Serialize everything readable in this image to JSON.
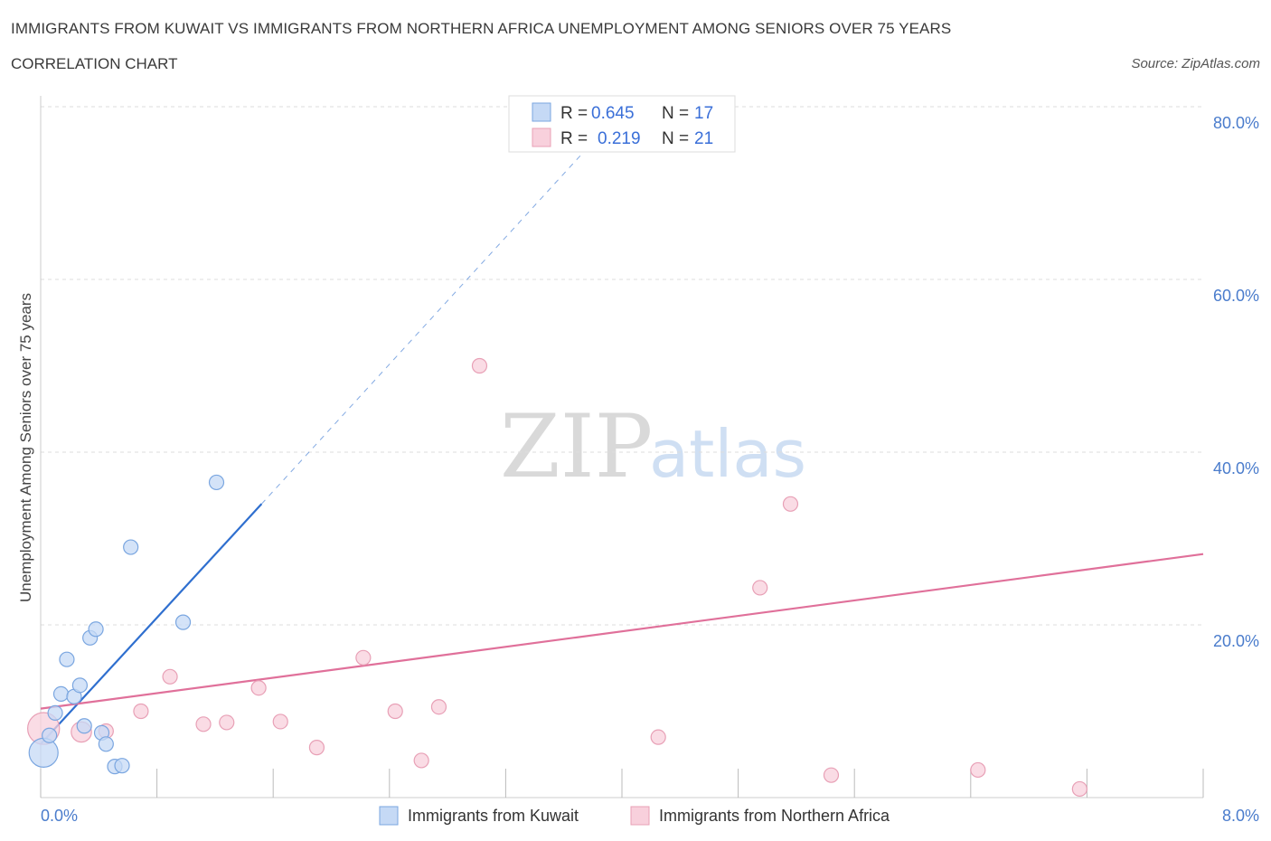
{
  "header": {
    "title": "IMMIGRANTS FROM KUWAIT VS IMMIGRANTS FROM NORTHERN AFRICA UNEMPLOYMENT AMONG SENIORS OVER 75 YEARS",
    "subtitle": "CORRELATION CHART",
    "source": "Source: ZipAtlas.com"
  },
  "watermark": {
    "zip": "ZIP",
    "atlas": "atlas"
  },
  "legend": {
    "r_label": "R =",
    "n_label": "N =",
    "kuwait": {
      "r": "0.645",
      "n": "17"
    },
    "nafrica": {
      "r": "0.219",
      "n": "21"
    }
  },
  "colors": {
    "kuwait_fill": "#c5d9f5",
    "kuwait_stroke": "#7aa6e0",
    "kuwait_line": "#2f6fcf",
    "nafrica_fill": "#f8d0dc",
    "nafrica_stroke": "#e8a0b6",
    "nafrica_line": "#e0709a",
    "axis_text": "#4a7ccc"
  },
  "chart_data": {
    "type": "scatter",
    "title": "IMMIGRANTS FROM KUWAIT VS IMMIGRANTS FROM NORTHERN AFRICA UNEMPLOYMENT AMONG SENIORS OVER 75 YEARS",
    "xlabel": "",
    "ylabel": "Unemployment Among Seniors over 75 years",
    "xlim": [
      0,
      8
    ],
    "ylim": [
      0,
      80
    ],
    "x_tick_labels": [
      "0.0%",
      "8.0%"
    ],
    "y_ticks": [
      20,
      40,
      60,
      80
    ],
    "y_tick_labels": [
      "20.0%",
      "40.0%",
      "60.0%",
      "80.0%"
    ],
    "grid": true,
    "legend_position": "top-center",
    "series": [
      {
        "name": "Immigrants from Kuwait",
        "r": 0.645,
        "n": 17,
        "points": [
          {
            "x": 0.02,
            "y": 5.2,
            "size": 2.0
          },
          {
            "x": 0.06,
            "y": 7.2,
            "size": 1.0
          },
          {
            "x": 0.1,
            "y": 9.8,
            "size": 1.0
          },
          {
            "x": 0.14,
            "y": 12.0,
            "size": 1.0
          },
          {
            "x": 0.18,
            "y": 16.0,
            "size": 1.0
          },
          {
            "x": 0.23,
            "y": 11.7,
            "size": 1.0
          },
          {
            "x": 0.27,
            "y": 13.0,
            "size": 1.0
          },
          {
            "x": 0.3,
            "y": 8.3,
            "size": 1.0
          },
          {
            "x": 0.34,
            "y": 18.5,
            "size": 1.0
          },
          {
            "x": 0.38,
            "y": 19.5,
            "size": 1.0
          },
          {
            "x": 0.42,
            "y": 7.5,
            "size": 1.0
          },
          {
            "x": 0.45,
            "y": 6.2,
            "size": 1.0
          },
          {
            "x": 0.51,
            "y": 3.6,
            "size": 1.0
          },
          {
            "x": 0.56,
            "y": 3.7,
            "size": 1.0
          },
          {
            "x": 0.62,
            "y": 29.0,
            "size": 1.0
          },
          {
            "x": 0.98,
            "y": 20.3,
            "size": 1.0
          },
          {
            "x": 1.21,
            "y": 36.5,
            "size": 1.0
          }
        ],
        "trend_solid": {
          "x": [
            0.0,
            1.52
          ],
          "y": [
            6.2,
            34.0
          ]
        },
        "trend_dashed": {
          "x": [
            1.52,
            3.75
          ],
          "y": [
            34.0,
            75.0
          ]
        }
      },
      {
        "name": "Immigrants from Northern Africa",
        "r": 0.219,
        "n": 21,
        "points": [
          {
            "x": 0.02,
            "y": 8.0,
            "size": 2.2
          },
          {
            "x": 0.28,
            "y": 7.6,
            "size": 1.4
          },
          {
            "x": 0.45,
            "y": 7.7,
            "size": 1.0
          },
          {
            "x": 0.69,
            "y": 10.0,
            "size": 1.0
          },
          {
            "x": 0.89,
            "y": 14.0,
            "size": 1.0
          },
          {
            "x": 1.12,
            "y": 8.5,
            "size": 1.0
          },
          {
            "x": 1.28,
            "y": 8.7,
            "size": 1.0
          },
          {
            "x": 1.5,
            "y": 12.7,
            "size": 1.0
          },
          {
            "x": 1.65,
            "y": 8.8,
            "size": 1.0
          },
          {
            "x": 1.9,
            "y": 5.8,
            "size": 1.0
          },
          {
            "x": 2.22,
            "y": 16.2,
            "size": 1.0
          },
          {
            "x": 2.44,
            "y": 10.0,
            "size": 1.0
          },
          {
            "x": 2.62,
            "y": 4.3,
            "size": 1.0
          },
          {
            "x": 2.74,
            "y": 10.5,
            "size": 1.0
          },
          {
            "x": 3.02,
            "y": 50.0,
            "size": 1.0
          },
          {
            "x": 4.25,
            "y": 7.0,
            "size": 1.0
          },
          {
            "x": 4.95,
            "y": 24.3,
            "size": 1.0
          },
          {
            "x": 5.16,
            "y": 34.0,
            "size": 1.0
          },
          {
            "x": 5.44,
            "y": 2.6,
            "size": 1.0
          },
          {
            "x": 6.45,
            "y": 3.2,
            "size": 1.0
          },
          {
            "x": 7.15,
            "y": 1.0,
            "size": 1.0
          }
        ],
        "trend_solid": {
          "x": [
            0.0,
            8.0
          ],
          "y": [
            10.3,
            28.2
          ]
        }
      }
    ]
  }
}
